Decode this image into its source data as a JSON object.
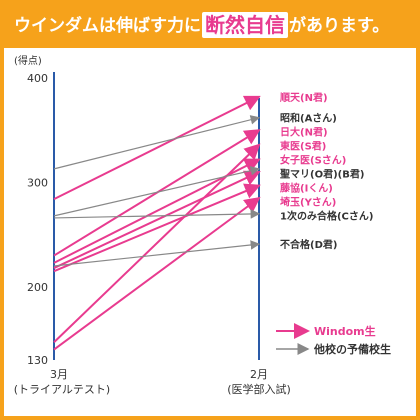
{
  "header": {
    "title_pre": "ウインダムは伸ばす力に",
    "title_highlight": "断然自信",
    "title_post": "があります。",
    "bg_color": "#f6a21b",
    "highlight_color": "#e83b8f"
  },
  "chart_data": {
    "type": "line",
    "title": "ウインダムは伸ばす力に断然自信があります。",
    "ylabel": "(得点)",
    "ylim": [
      130,
      400
    ],
    "yticks": [
      130,
      200,
      300,
      400
    ],
    "xlabel": "",
    "x": [
      "3月",
      "2月"
    ],
    "x_sub": [
      "(トライアルテスト)",
      "(医学部入試)"
    ],
    "grid": false,
    "legend_placement": "bottom-right",
    "legend": [
      {
        "label": "Windom生",
        "color": "#e83b8f"
      },
      {
        "label": "他校の予備校生",
        "color": "#888888"
      }
    ],
    "series": [
      {
        "name": "順天(N君)",
        "group": "windom",
        "values": [
          284,
          382
        ]
      },
      {
        "name": "昭和(Aさん)",
        "group": "other",
        "values": [
          313,
          362
        ]
      },
      {
        "name": "日大(N君)",
        "group": "windom",
        "values": [
          230,
          350
        ]
      },
      {
        "name": "東医(S君)",
        "group": "windom",
        "values": [
          147,
          336
        ]
      },
      {
        "name": "女子医(Sさん)",
        "group": "windom",
        "values": [
          223,
          322
        ]
      },
      {
        "name": "聖マリ(O君)(B君)",
        "group": "windom",
        "values": [
          218,
          310
        ]
      },
      {
        "name": "聖マリ(O君)(B君)",
        "group": "other",
        "values": [
          268,
          313
        ]
      },
      {
        "name": "藤協(Iくん)",
        "group": "windom",
        "values": [
          215,
          297
        ]
      },
      {
        "name": "埼玉(Yさん)",
        "group": "windom",
        "values": [
          140,
          285
        ]
      },
      {
        "name": "1次のみ合格(Cさん)",
        "group": "other",
        "values": [
          266,
          270
        ]
      },
      {
        "name": "不合格(D君)",
        "group": "other",
        "values": [
          220,
          241
        ]
      }
    ]
  }
}
